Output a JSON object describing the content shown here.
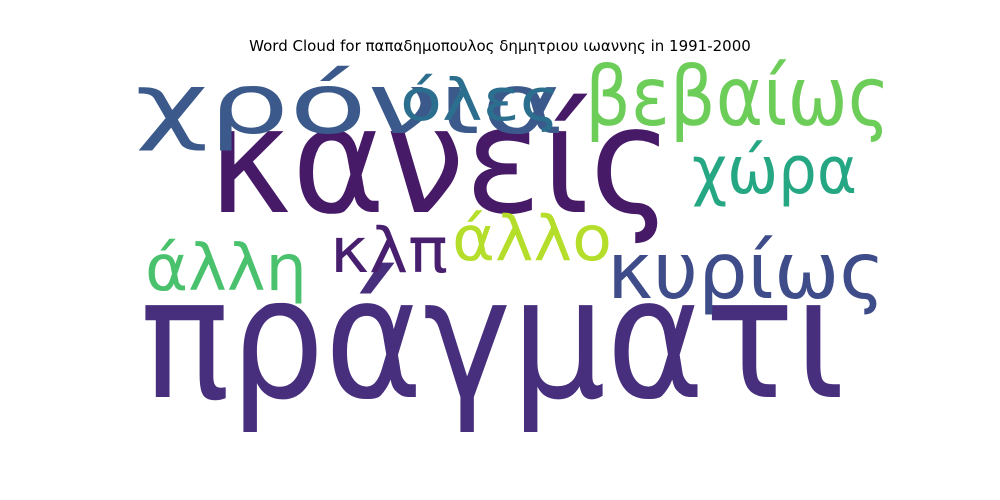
{
  "chart_data": {
    "type": "wordcloud",
    "title": "Word Cloud for παπαδημοπουλος δημητριου ιωαννης in 1991-2000",
    "words": [
      {
        "text": "πράγματι",
        "color": "#472f7d"
      },
      {
        "text": "κανείς",
        "color": "#471a68"
      },
      {
        "text": "χρόνια",
        "color": "#3b5a8b"
      },
      {
        "text": "όλες",
        "color": "#2c6e8e"
      },
      {
        "text": "βεβαίως",
        "color": "#6dcd59"
      },
      {
        "text": "χώρα",
        "color": "#26a784"
      },
      {
        "text": "κλπ",
        "color": "#481e6f"
      },
      {
        "text": "άλλο",
        "color": "#b5de2b"
      },
      {
        "text": "άλλη",
        "color": "#4ac16d"
      },
      {
        "text": "κυρίως",
        "color": "#3f4c8a"
      }
    ]
  }
}
